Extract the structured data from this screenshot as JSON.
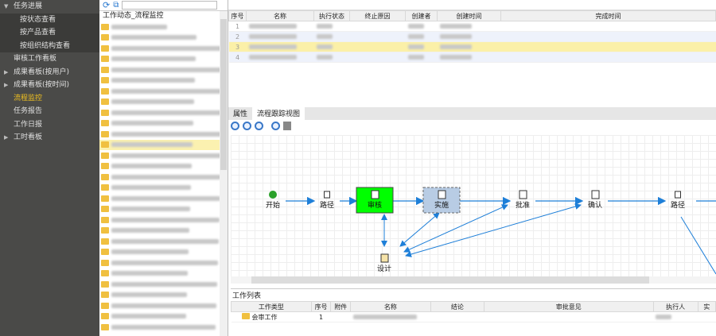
{
  "sidebar": {
    "items": [
      {
        "label": "任务进展",
        "expanded": true,
        "arrow": "▼"
      },
      {
        "label": "按状态查看",
        "sub": true
      },
      {
        "label": "按产品查看",
        "sub": true
      },
      {
        "label": "按组织结构查看",
        "sub": true
      },
      {
        "label": "审核工作看板"
      },
      {
        "label": "成果看板(按用户)",
        "arrow": "▶"
      },
      {
        "label": "成果看板(按时间)",
        "arrow": "▶"
      },
      {
        "label": "流程监控",
        "active": true
      },
      {
        "label": "任务报告"
      },
      {
        "label": "工作日报"
      },
      {
        "label": "工时看板",
        "arrow": "▶"
      }
    ]
  },
  "tree": {
    "title": "工作动态_流程监控",
    "search_placeholder": "",
    "icons": [
      "refresh-icon",
      "tree-view-icon",
      "move-down-icon",
      "move-up-icon"
    ],
    "row_count": 29,
    "highlighted_row": 11
  },
  "process_table": {
    "headers": [
      "序号",
      "名称",
      "执行状态",
      "终止原因",
      "创建者",
      "创建时间",
      "完成时间"
    ],
    "rows": [
      {
        "no": "1"
      },
      {
        "no": "2"
      },
      {
        "no": "3",
        "selected": true
      },
      {
        "no": "4"
      }
    ]
  },
  "tabs": [
    {
      "label": "属性"
    },
    {
      "label": "流程跟踪视图",
      "active": true
    }
  ],
  "diagram": {
    "nodes": [
      {
        "label": "开始",
        "type": "start"
      },
      {
        "label": "路径",
        "type": "route"
      },
      {
        "label": "审核",
        "type": "task",
        "state": "current",
        "color": "#00ff00"
      },
      {
        "label": "实施",
        "type": "task",
        "state": "selected",
        "color": "#b8cce4"
      },
      {
        "label": "批准",
        "type": "task"
      },
      {
        "label": "确认",
        "type": "task"
      },
      {
        "label": "路径",
        "type": "route"
      },
      {
        "label": "设计",
        "type": "task"
      }
    ],
    "edge_color": "#1e7fd8"
  },
  "worklist": {
    "legend": "工作列表",
    "headers": [
      "工作类型",
      "序号",
      "附件",
      "名称",
      "结论",
      "审批意见",
      "执行人",
      "实"
    ],
    "rows": [
      {
        "type": "会审工作",
        "no": "1"
      }
    ]
  }
}
